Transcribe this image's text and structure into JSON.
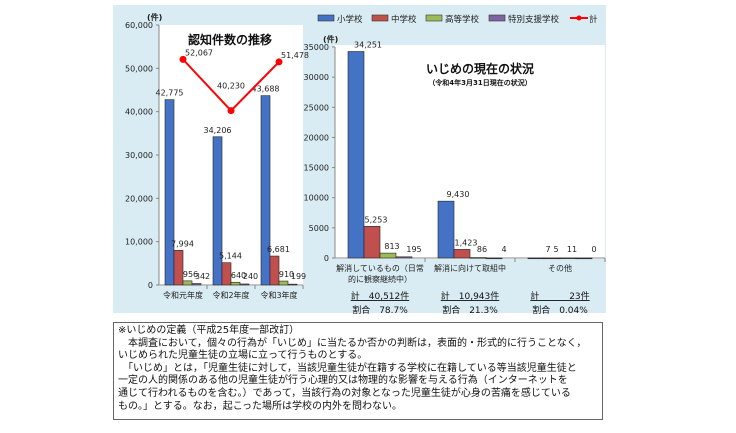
{
  "colors": {
    "elementary": "#4472c4",
    "junior_high": "#c0504d",
    "high": "#9bbb59",
    "special_support": "#8064a2",
    "total": "#ff0000"
  },
  "legend": [
    "小学校",
    "中学校",
    "高等学校",
    "特別支援学校",
    "計"
  ],
  "chart_data": [
    {
      "type": "bar",
      "title": "認知件数の推移",
      "ylabel": "(件)",
      "ylim": [
        0,
        60000
      ],
      "yticks": [
        "0",
        "10,000",
        "20,000",
        "30,000",
        "40,000",
        "50,000",
        "60,000"
      ],
      "categories": [
        "令和元年度",
        "令和2年度",
        "令和3年度"
      ],
      "series": [
        {
          "name": "小学校",
          "values": [
            42775,
            34206,
            43688
          ],
          "labels": [
            "42,775",
            "34,206",
            "43,688"
          ]
        },
        {
          "name": "中学校",
          "values": [
            7994,
            5144,
            6681
          ],
          "labels": [
            "7,994",
            "5,144",
            "6,681"
          ]
        },
        {
          "name": "高等学校",
          "values": [
            956,
            640,
            910
          ],
          "labels": [
            "956",
            "640",
            "910"
          ]
        },
        {
          "name": "特別支援学校",
          "values": [
            342,
            240,
            199
          ],
          "labels": [
            "342",
            "240",
            "199"
          ]
        },
        {
          "name": "計",
          "type": "line",
          "values": [
            52067,
            40230,
            51478
          ],
          "labels": [
            "52,067",
            "40,230",
            "51,478"
          ]
        }
      ]
    },
    {
      "type": "bar",
      "title": "いじめの現在の状況",
      "subtitle": "（令和4年3月31日現在の状況）",
      "ylabel": "(件)",
      "ylim": [
        0,
        35000
      ],
      "yticks": [
        "0",
        "5000",
        "10000",
        "15000",
        "20000",
        "25000",
        "30000",
        "35000"
      ],
      "categories": [
        [
          "解消しているもの（日常",
          "的に観察継続中）"
        ],
        [
          "解消に向けて取組中"
        ],
        [
          "その他"
        ]
      ],
      "series": [
        {
          "name": "小学校",
          "values": [
            34251,
            9430,
            7
          ],
          "labels": [
            "34,251",
            "9,430",
            "7"
          ]
        },
        {
          "name": "中学校",
          "values": [
            5253,
            1423,
            5
          ],
          "labels": [
            "5,253",
            "1,423",
            "5"
          ]
        },
        {
          "name": "高等学校",
          "values": [
            813,
            86,
            11
          ],
          "labels": [
            "813",
            "86",
            "11"
          ]
        },
        {
          "name": "特別支援学校",
          "values": [
            195,
            4,
            0
          ],
          "labels": [
            "195",
            "4",
            "0"
          ]
        }
      ],
      "totals": [
        "計　40,512件",
        "計　10,943件",
        "計　　　 23件"
      ],
      "ratios": [
        "割合　78.7%",
        "割合　21.3%",
        "割合　0.04%"
      ]
    }
  ],
  "definition": [
    "※いじめの定義（平成25年度一部改訂）",
    "　本調査において，個々の行為が「いじめ」に当たるか否かの判断は，表面的・形式的に行うことなく，",
    "いじめられた児童生徒の立場に立って行うものとする。",
    "　「いじめ」とは，「児童生徒に対して，当該児童生徒が在籍する学校に在籍している等当該児童生徒と",
    "一定の人的関係のある他の児童生徒が行う心理的又は物理的な影響を与える行為（インターネットを",
    "通じて行われるものを含む。）であって，当該行為の対象となった児童生徒が心身の苦痛を感じている",
    "もの。」とする。なお，起こった場所は学校の内外を問わない。"
  ]
}
